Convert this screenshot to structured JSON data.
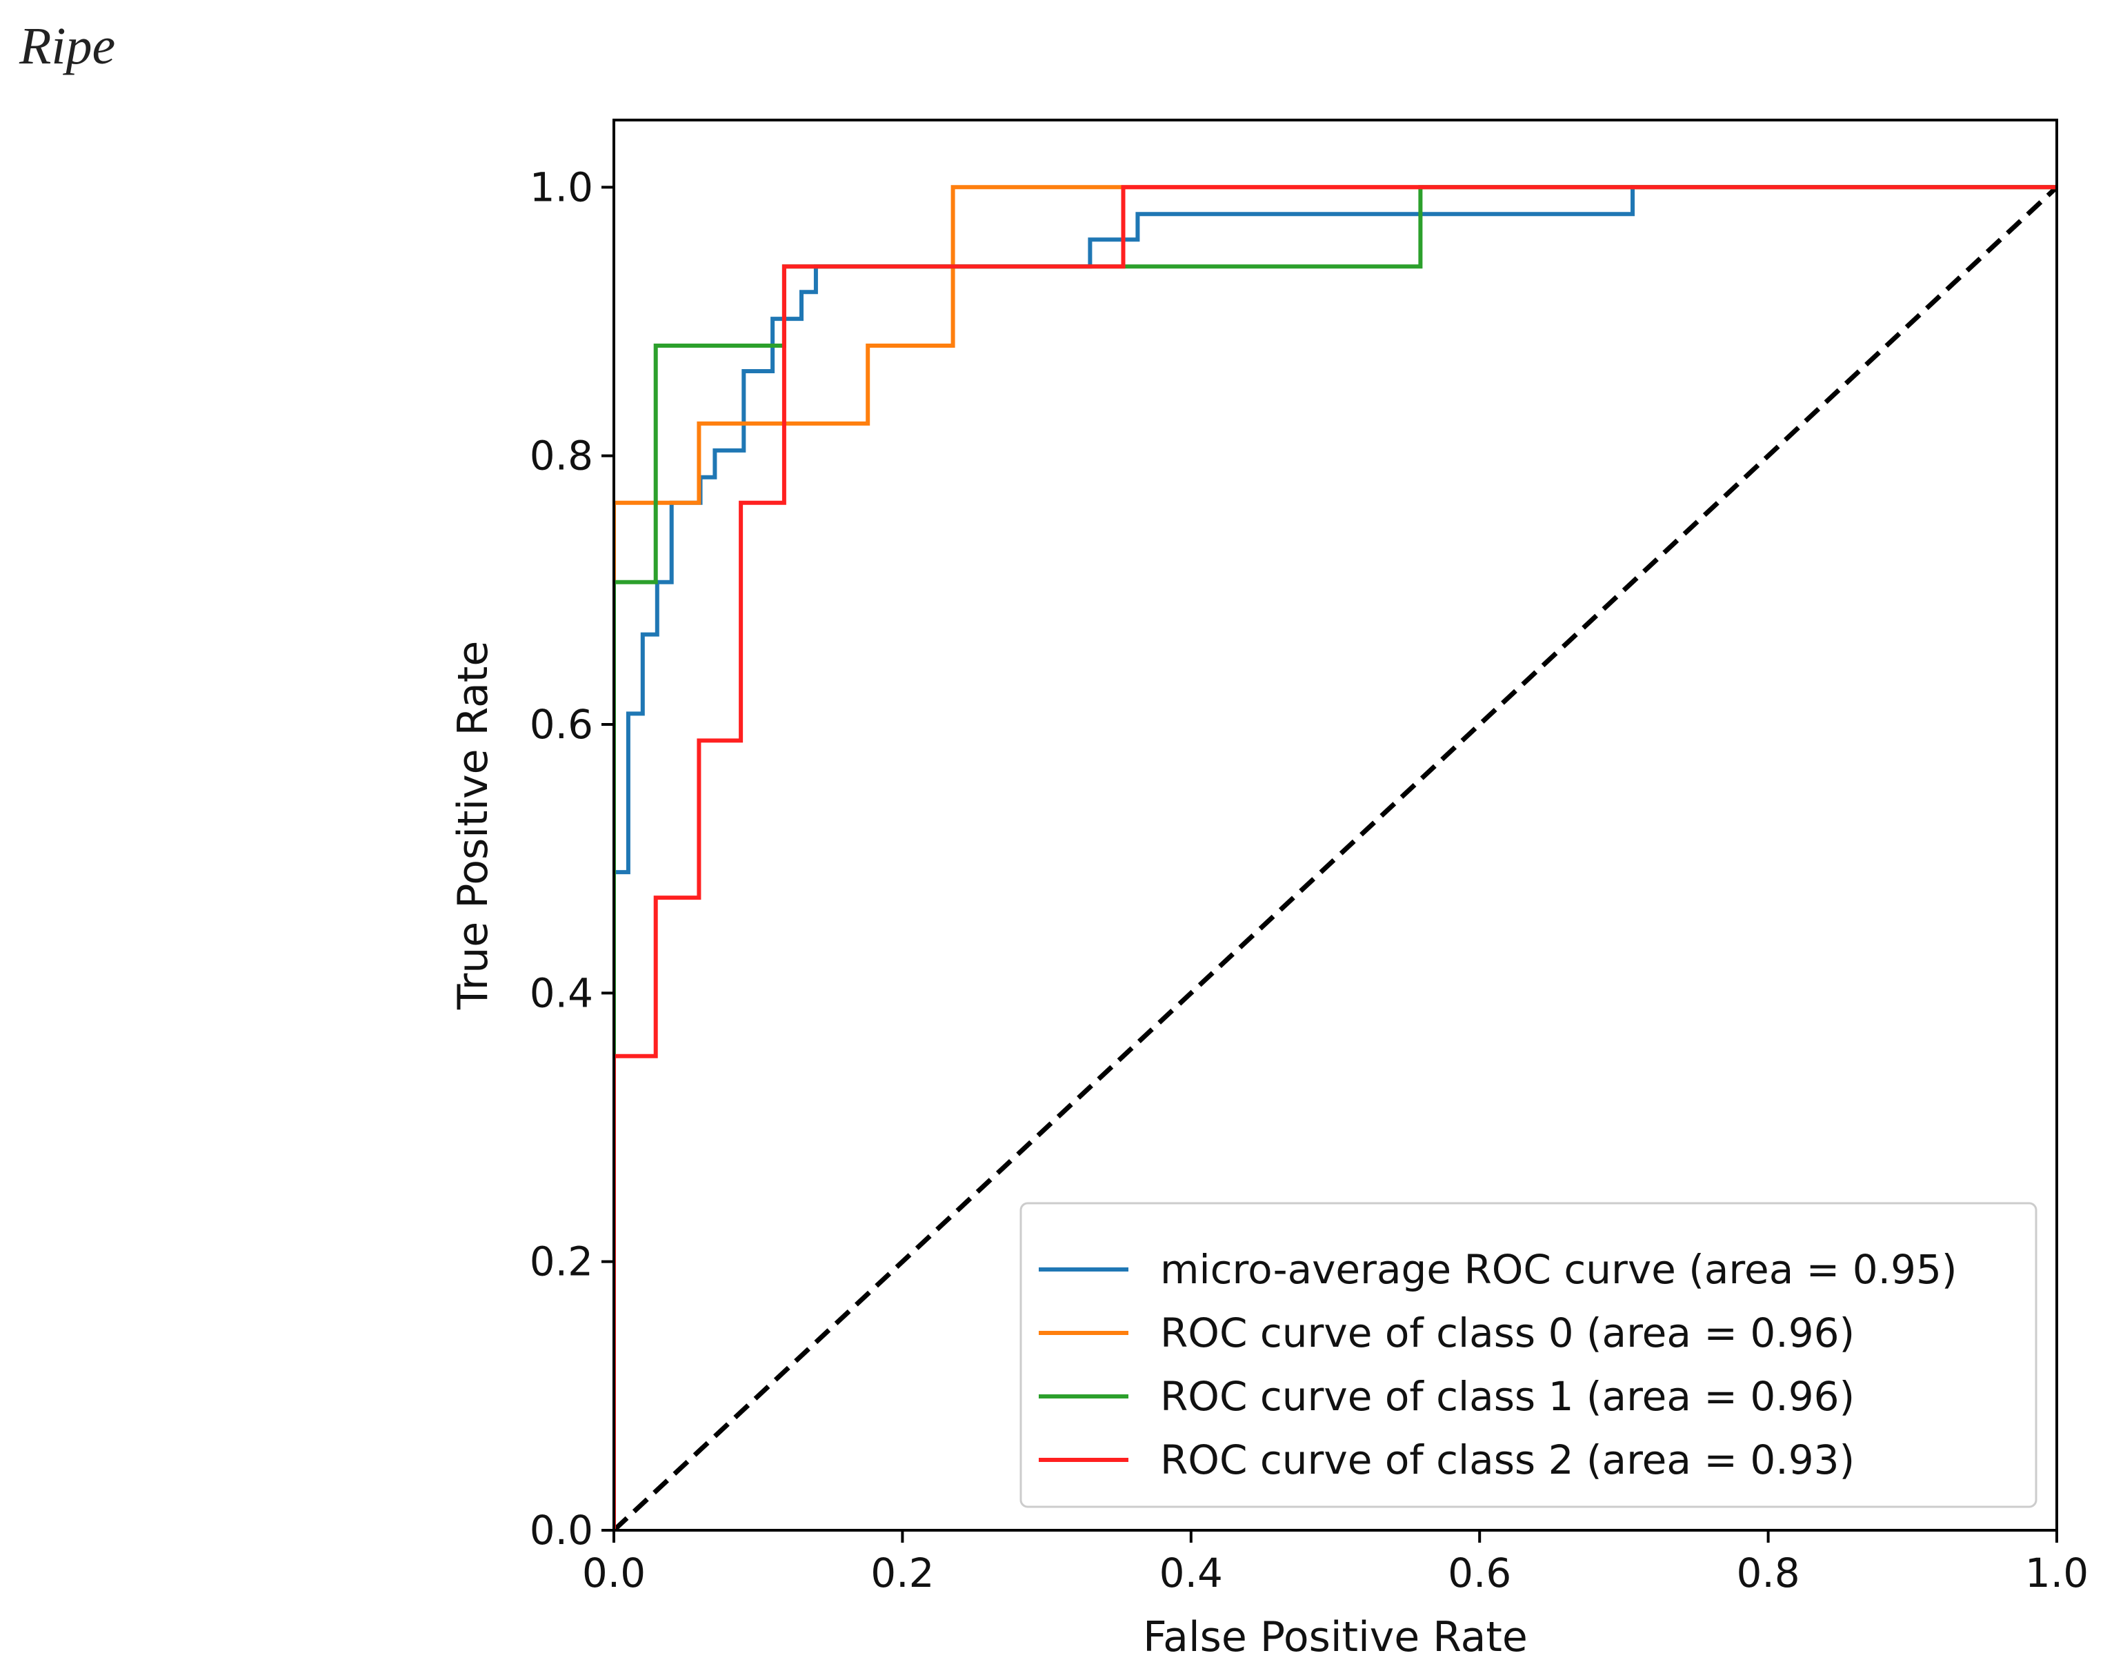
{
  "panel_title": "Ripe",
  "chart_data": {
    "type": "line",
    "title": "",
    "xlabel": "False Positive Rate",
    "ylabel": "True Positive Rate",
    "xlim": [
      0.0,
      1.0
    ],
    "ylim": [
      0.0,
      1.05
    ],
    "x_ticks": [
      "0.0",
      "0.2",
      "0.4",
      "0.6",
      "0.8",
      "1.0"
    ],
    "y_ticks": [
      "0.0",
      "0.2",
      "0.4",
      "0.6",
      "0.8",
      "1.0"
    ],
    "legend_position": "lower-right",
    "series": [
      {
        "name": "micro-average ROC curve (area = 0.95)",
        "color": "#1f77b4",
        "style": "solid",
        "points": [
          [
            0.0,
            0.0
          ],
          [
            0.0,
            0.49
          ],
          [
            0.01,
            0.49
          ],
          [
            0.01,
            0.608
          ],
          [
            0.02,
            0.608
          ],
          [
            0.02,
            0.667
          ],
          [
            0.03,
            0.667
          ],
          [
            0.03,
            0.706
          ],
          [
            0.04,
            0.706
          ],
          [
            0.04,
            0.765
          ],
          [
            0.06,
            0.765
          ],
          [
            0.06,
            0.784
          ],
          [
            0.07,
            0.784
          ],
          [
            0.07,
            0.804
          ],
          [
            0.09,
            0.804
          ],
          [
            0.09,
            0.863
          ],
          [
            0.11,
            0.863
          ],
          [
            0.11,
            0.902
          ],
          [
            0.13,
            0.902
          ],
          [
            0.13,
            0.922
          ],
          [
            0.14,
            0.922
          ],
          [
            0.14,
            0.941
          ],
          [
            0.33,
            0.941
          ],
          [
            0.33,
            0.961
          ],
          [
            0.363,
            0.961
          ],
          [
            0.363,
            0.98
          ],
          [
            0.706,
            0.98
          ],
          [
            0.706,
            1.0
          ],
          [
            1.0,
            1.0
          ]
        ]
      },
      {
        "name": "ROC curve of class 0 (area = 0.96)",
        "color": "#ff7f0e",
        "style": "solid",
        "points": [
          [
            0.0,
            0.0
          ],
          [
            0.0,
            0.765
          ],
          [
            0.059,
            0.765
          ],
          [
            0.059,
            0.824
          ],
          [
            0.176,
            0.824
          ],
          [
            0.176,
            0.882
          ],
          [
            0.235,
            0.882
          ],
          [
            0.235,
            1.0
          ],
          [
            1.0,
            1.0
          ]
        ]
      },
      {
        "name": "ROC curve of class 1 (area = 0.96)",
        "color": "#2ca02c",
        "style": "solid",
        "points": [
          [
            0.0,
            0.0
          ],
          [
            0.0,
            0.706
          ],
          [
            0.029,
            0.706
          ],
          [
            0.029,
            0.882
          ],
          [
            0.118,
            0.882
          ],
          [
            0.118,
            0.941
          ],
          [
            0.559,
            0.941
          ],
          [
            0.559,
            1.0
          ],
          [
            1.0,
            1.0
          ]
        ]
      },
      {
        "name": "ROC curve of class 2 (area = 0.93)",
        "color": "#ff2020",
        "style": "solid",
        "points": [
          [
            0.0,
            0.0
          ],
          [
            0.0,
            0.353
          ],
          [
            0.029,
            0.353
          ],
          [
            0.029,
            0.471
          ],
          [
            0.059,
            0.471
          ],
          [
            0.059,
            0.588
          ],
          [
            0.088,
            0.588
          ],
          [
            0.088,
            0.765
          ],
          [
            0.118,
            0.765
          ],
          [
            0.118,
            0.941
          ],
          [
            0.353,
            0.941
          ],
          [
            0.353,
            1.0
          ],
          [
            1.0,
            1.0
          ]
        ]
      },
      {
        "name": "chance",
        "color": "#000000",
        "style": "dashed",
        "in_legend": false,
        "points": [
          [
            0.0,
            0.0
          ],
          [
            1.0,
            1.0
          ]
        ]
      }
    ]
  }
}
